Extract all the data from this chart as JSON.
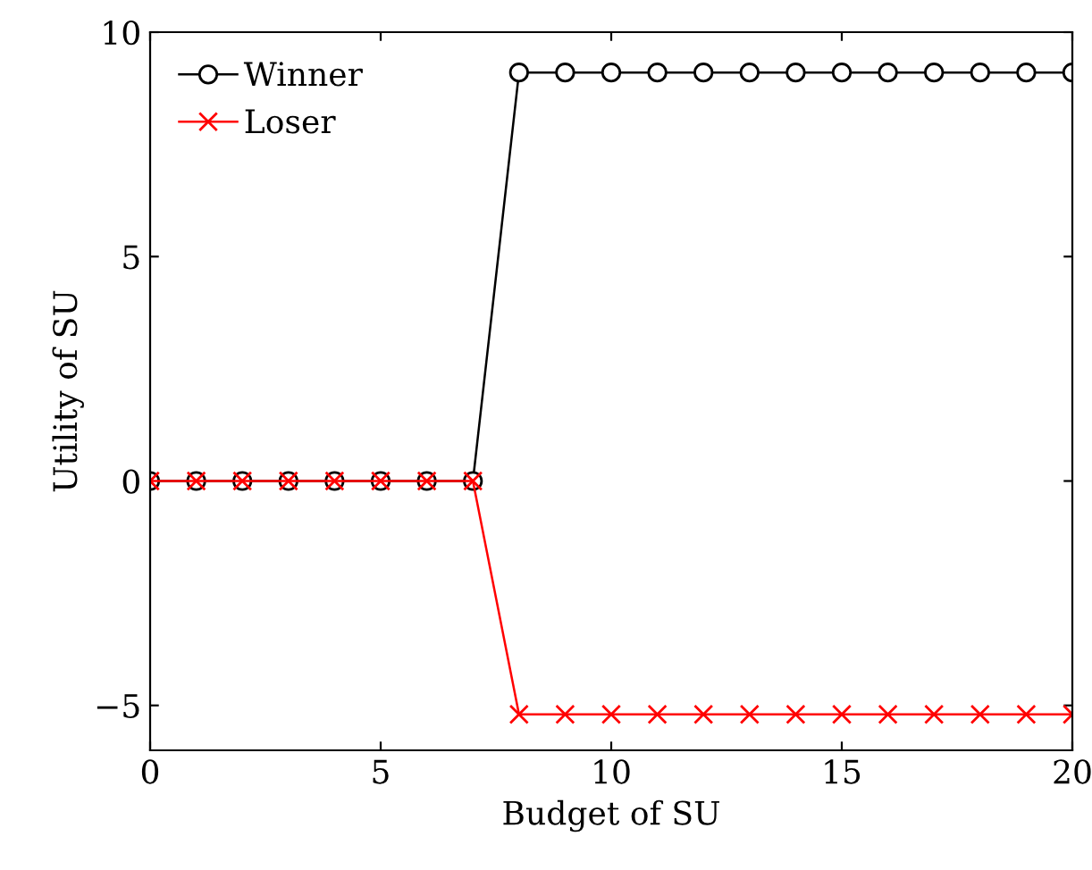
{
  "chart_data": {
    "type": "line",
    "xlabel": "Budget of SU",
    "ylabel": "Utility of SU",
    "x": [
      0,
      1,
      2,
      3,
      4,
      5,
      6,
      7,
      8,
      9,
      10,
      11,
      12,
      13,
      14,
      15,
      16,
      17,
      18,
      19,
      20
    ],
    "series": [
      {
        "name": "Winner",
        "color": "#000000",
        "marker": "circle",
        "values": [
          0,
          0,
          0,
          0,
          0,
          0,
          0,
          0,
          9.1,
          9.1,
          9.1,
          9.1,
          9.1,
          9.1,
          9.1,
          9.1,
          9.1,
          9.1,
          9.1,
          9.1,
          9.1
        ]
      },
      {
        "name": "Loser",
        "color": "#ff0000",
        "marker": "cross",
        "values": [
          0,
          0,
          0,
          0,
          0,
          0,
          0,
          0,
          -5.2,
          -5.2,
          -5.2,
          -5.2,
          -5.2,
          -5.2,
          -5.2,
          -5.2,
          -5.2,
          -5.2,
          -5.2,
          -5.2,
          -5.2
        ]
      }
    ],
    "xlim": [
      0,
      20
    ],
    "ylim": [
      -6,
      10
    ],
    "xticks": [
      0,
      5,
      10,
      15,
      20
    ],
    "yticks": [
      {
        "value": -5,
        "label": "−5"
      },
      0,
      5,
      10
    ],
    "grid": false,
    "legend": "top left"
  }
}
